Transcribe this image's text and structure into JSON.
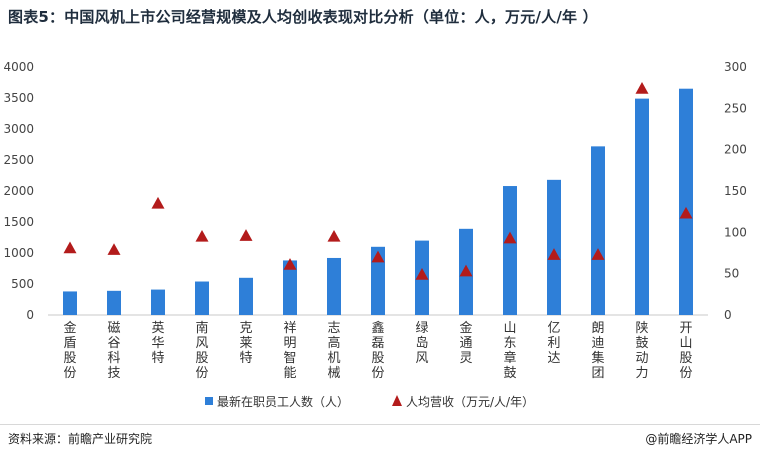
{
  "title": "图表5：中国风机上市公司经营规模及人均创收表现对比分析（单位：人，万元/人/年 ）",
  "footer": {
    "source": "资料来源：前瞻产业研究院",
    "brand": "@前瞻经济学人APP"
  },
  "chart_data": {
    "type": "bar",
    "categories": [
      "金盾股份",
      "磁谷科技",
      "英华特",
      "南风股份",
      "克莱特",
      "祥明智能",
      "志高机械",
      "鑫磊股份",
      "绿岛风",
      "金通灵",
      "山东章鼓",
      "亿利达",
      "朗迪集团",
      "陕鼓动力",
      "开山股份"
    ],
    "series": [
      {
        "name": "最新在职员工人数（人）",
        "type": "bar",
        "axis": "left",
        "color": "#2e7fd8",
        "values": [
          380,
          390,
          410,
          540,
          600,
          880,
          920,
          1100,
          1200,
          1390,
          2080,
          2180,
          2720,
          3490,
          3650
        ]
      },
      {
        "name": "人均营收（万元/人/年）",
        "type": "scatter",
        "marker": "triangle",
        "axis": "right",
        "color": "#b31b1b",
        "values": [
          81,
          79,
          135,
          95,
          96,
          61,
          95,
          70,
          49,
          53,
          93,
          73,
          73,
          274,
          123
        ]
      }
    ],
    "y_left": {
      "min": 0,
      "max": 4000,
      "ticks": [
        "0",
        "500",
        "1000",
        "1500",
        "2000",
        "2500",
        "3000",
        "3500",
        "4000"
      ]
    },
    "y_right": {
      "min": 0,
      "max": 300,
      "ticks": [
        "0",
        "50",
        "100",
        "150",
        "200",
        "250",
        "300"
      ]
    },
    "grid": false,
    "legend_position": "bottom"
  }
}
